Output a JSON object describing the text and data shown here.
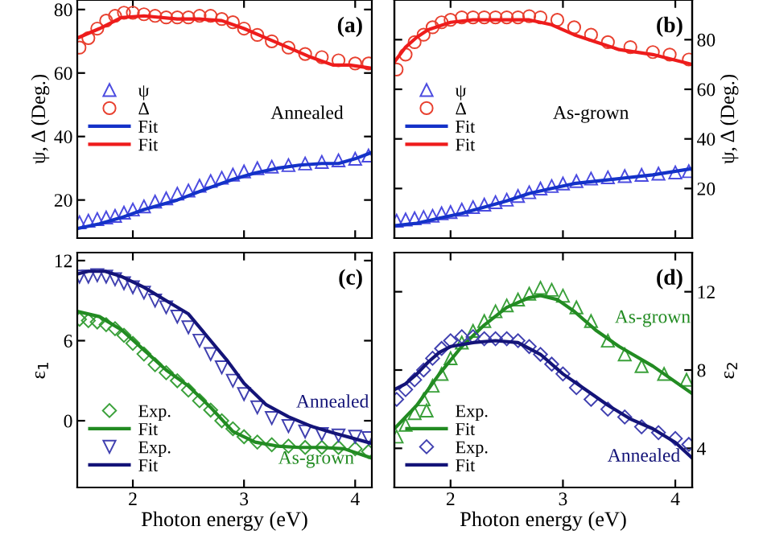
{
  "chart_data": [
    {
      "type": "scatter",
      "tick_labels": "y",
      "ylabel": "ψ, Δ (Deg.)",
      "xlim": [
        1.5,
        4.15
      ],
      "xticks": [
        2,
        3,
        4
      ],
      "ylim": [
        8,
        83
      ],
      "yticks": [
        20,
        40,
        60,
        80
      ],
      "legend": "left",
      "annotations": [
        "(a)",
        "Annealed"
      ],
      "series": [
        {
          "name": "ψ",
          "marker": "triangle",
          "color": "#4b4be0",
          "x": [
            1.52,
            1.6,
            1.68,
            1.76,
            1.84,
            1.92,
            2.0,
            2.1,
            2.2,
            2.3,
            2.4,
            2.5,
            2.6,
            2.7,
            2.8,
            2.9,
            3.0,
            3.12,
            3.25,
            3.4,
            3.55,
            3.7,
            3.85,
            4.0,
            4.12
          ],
          "values": [
            13,
            13.5,
            14,
            14.5,
            15,
            16,
            17,
            18,
            19.5,
            20.5,
            22,
            23,
            24.5,
            26,
            27,
            28,
            29,
            30,
            30.5,
            31,
            31.5,
            32,
            32.5,
            33,
            34
          ]
        },
        {
          "name": "Δ",
          "marker": "circle",
          "color": "#e8402f",
          "x": [
            1.52,
            1.6,
            1.68,
            1.76,
            1.84,
            1.92,
            2.0,
            2.1,
            2.2,
            2.3,
            2.4,
            2.5,
            2.6,
            2.7,
            2.8,
            2.9,
            3.0,
            3.12,
            3.25,
            3.4,
            3.55,
            3.7,
            3.85,
            4.0,
            4.12
          ],
          "values": [
            68,
            71,
            74,
            76.5,
            78,
            79,
            79,
            78.5,
            78,
            77.5,
            77.5,
            77.5,
            78,
            78,
            77,
            76,
            74,
            72,
            70,
            68,
            66,
            65,
            64,
            63,
            63
          ]
        },
        {
          "name": "Fit",
          "type": "line",
          "color": "#1432c8",
          "x": [
            1.5,
            1.7,
            1.9,
            2.1,
            2.4,
            2.7,
            2.9,
            3.1,
            3.3,
            3.5,
            3.7,
            3.85,
            4.0,
            4.15
          ],
          "values": [
            11,
            12.5,
            14.5,
            17,
            20,
            24,
            26.5,
            28.5,
            30,
            31,
            31.5,
            31.5,
            33,
            35
          ]
        },
        {
          "name": "Fit",
          "type": "line",
          "color": "#ee1c1c",
          "x": [
            1.5,
            1.7,
            1.9,
            2.1,
            2.4,
            2.6,
            2.8,
            3.0,
            3.2,
            3.4,
            3.6,
            3.8,
            3.95,
            4.15
          ],
          "values": [
            71,
            74,
            77.5,
            78,
            77,
            77,
            76.5,
            74,
            71,
            68,
            65,
            62.5,
            62.5,
            61.5
          ]
        }
      ]
    },
    {
      "type": "scatter",
      "tick_labels": "y",
      "y2label": "ψ, Δ (Deg.)",
      "xlim": [
        1.5,
        4.15
      ],
      "xticks": [
        2,
        3,
        4
      ],
      "y2lim": [
        0,
        96
      ],
      "y2ticks": [
        20,
        40,
        60,
        80
      ],
      "legend": "left",
      "annotations": [
        "(b)",
        "As-grown"
      ],
      "series": [
        {
          "name": "ψ",
          "axis": "y2",
          "marker": "triangle",
          "color": "#4b4be0",
          "x": [
            1.52,
            1.6,
            1.68,
            1.76,
            1.84,
            1.92,
            2.0,
            2.1,
            2.2,
            2.3,
            2.4,
            2.5,
            2.6,
            2.7,
            2.8,
            2.9,
            3.0,
            3.12,
            3.25,
            3.4,
            3.55,
            3.7,
            3.85,
            4.0,
            4.12
          ],
          "values": [
            7,
            7.5,
            8,
            8.5,
            9,
            10,
            10.5,
            11.5,
            12.5,
            13.5,
            14.5,
            15.5,
            17,
            18.5,
            20,
            21,
            22,
            23,
            24,
            24.5,
            25,
            25.5,
            26,
            26.5,
            27
          ]
        },
        {
          "name": "Δ",
          "axis": "y2",
          "marker": "circle",
          "color": "#e8402f",
          "x": [
            1.52,
            1.6,
            1.68,
            1.76,
            1.84,
            1.92,
            2.0,
            2.1,
            2.2,
            2.3,
            2.4,
            2.5,
            2.6,
            2.7,
            2.8,
            2.95,
            3.1,
            3.25,
            3.4,
            3.6,
            3.8,
            3.95,
            4.12
          ],
          "values": [
            68,
            74,
            79,
            82,
            85,
            87,
            88,
            89,
            89,
            89,
            89,
            89,
            89,
            89.5,
            89,
            88,
            85,
            82,
            79,
            77,
            75,
            74,
            72
          ]
        },
        {
          "name": "Fit",
          "type": "line",
          "axis": "y2",
          "color": "#1432c8",
          "x": [
            1.5,
            1.7,
            1.9,
            2.1,
            2.3,
            2.5,
            2.7,
            2.9,
            3.1,
            3.3,
            3.5,
            3.8,
            4.15
          ],
          "values": [
            5,
            6,
            8,
            10,
            12.5,
            15,
            18,
            20,
            22,
            23,
            24,
            25.5,
            28
          ]
        },
        {
          "name": "Fit",
          "type": "line",
          "axis": "y2",
          "color": "#ee1c1c",
          "x": [
            1.5,
            1.6,
            1.7,
            1.8,
            2.0,
            2.2,
            2.5,
            2.7,
            2.9,
            3.1,
            3.3,
            3.5,
            3.8,
            4.15
          ],
          "values": [
            71,
            77,
            81,
            84,
            87,
            88,
            88,
            88,
            86,
            82,
            79,
            76,
            74,
            70
          ]
        }
      ]
    },
    {
      "type": "scatter",
      "ylabel": "ε$_{1}$",
      "xlabel": "Photon energy (eV)",
      "xlim": [
        1.5,
        4.15
      ],
      "xticks": [
        2,
        3,
        4
      ],
      "ylim": [
        -5,
        12.6
      ],
      "yticks": [
        0,
        6,
        12
      ],
      "legend": "bottom left",
      "annotations": [
        "(c)",
        "Annealed",
        "As-grown"
      ],
      "series": [
        {
          "name": "Exp.",
          "marker": "diamond",
          "color": "#3aa03a",
          "x": [
            1.52,
            1.6,
            1.68,
            1.76,
            1.84,
            1.92,
            2.0,
            2.1,
            2.2,
            2.3,
            2.4,
            2.5,
            2.6,
            2.7,
            2.8,
            2.9,
            3.0,
            3.12,
            3.25,
            3.4,
            3.55,
            3.7,
            3.85,
            4.0,
            4.12
          ],
          "values": [
            7.6,
            7.5,
            7.4,
            7.2,
            6.9,
            6.4,
            5.8,
            5,
            4.2,
            3.6,
            3,
            2.3,
            1.5,
            0.8,
            0,
            -0.6,
            -1.2,
            -1.6,
            -1.8,
            -1.9,
            -2,
            -2,
            -2,
            -2.1,
            -2.3
          ]
        },
        {
          "name": "Fit",
          "type": "line",
          "color": "#228b22",
          "x": [
            1.5,
            1.7,
            1.9,
            2.1,
            2.3,
            2.5,
            2.7,
            2.9,
            3.1,
            3.3,
            3.5,
            3.7,
            3.9,
            4.15
          ],
          "values": [
            8.2,
            7.8,
            6.8,
            5.3,
            3.8,
            2.6,
            1.0,
            -0.8,
            -1.6,
            -1.9,
            -2,
            -2,
            -2.1,
            -2.8
          ]
        },
        {
          "name": "Exp.",
          "marker": "triangle_down",
          "color": "#4040b0",
          "x": [
            1.52,
            1.6,
            1.68,
            1.76,
            1.84,
            1.92,
            2.0,
            2.1,
            2.2,
            2.3,
            2.4,
            2.5,
            2.6,
            2.7,
            2.8,
            2.9,
            3.0,
            3.12,
            3.25,
            3.4,
            3.55,
            3.7,
            3.85,
            4.0,
            4.12
          ],
          "values": [
            10.8,
            10.8,
            10.9,
            10.8,
            10.6,
            10.3,
            10,
            9.6,
            9,
            8.5,
            7.8,
            7,
            6,
            5,
            4,
            3,
            2,
            1,
            0.2,
            -0.4,
            -0.8,
            -1,
            -1.1,
            -1.2,
            -1.3
          ]
        },
        {
          "name": "Fit",
          "type": "line",
          "color": "#141478",
          "x": [
            1.5,
            1.6,
            1.75,
            1.9,
            2.1,
            2.3,
            2.5,
            2.7,
            2.85,
            3.0,
            3.2,
            3.4,
            3.6,
            3.8,
            4.15
          ],
          "values": [
            11,
            11.2,
            11.2,
            10.8,
            10,
            9,
            8,
            6,
            4.5,
            2.8,
            1.2,
            0.3,
            -0.4,
            -0.9,
            -1.7
          ]
        }
      ]
    },
    {
      "type": "scatter",
      "y2label": "ε$_{2}$",
      "xlabel": "Photon energy (eV)",
      "xlim": [
        1.5,
        4.15
      ],
      "xticks": [
        2,
        3,
        4
      ],
      "y2lim": [
        2,
        14
      ],
      "y2ticks": [
        4,
        8,
        12
      ],
      "legend": "bottom left",
      "annotations": [
        "(d)",
        "As-grown",
        "Annealed"
      ],
      "series": [
        {
          "name": "Exp.",
          "axis": "y2",
          "marker": "triangle",
          "color": "#3aa03a",
          "x": [
            1.52,
            1.6,
            1.68,
            1.76,
            1.84,
            1.92,
            2.0,
            2.1,
            2.2,
            2.3,
            2.4,
            2.5,
            2.6,
            2.7,
            2.8,
            2.9,
            3.0,
            3.12,
            3.25,
            3.4,
            3.55,
            3.7,
            3.9,
            4.1
          ],
          "values": [
            4.6,
            5.2,
            5.8,
            6.5,
            7.2,
            7.8,
            8.6,
            9.4,
            10,
            10.5,
            11,
            11.3,
            11.6,
            11.9,
            12.2,
            12.1,
            11.8,
            11.2,
            10.5,
            9.5,
            8.8,
            8.2,
            7.8,
            7.5
          ]
        },
        {
          "name": "Fit",
          "type": "line",
          "axis": "y2",
          "color": "#228b22",
          "x": [
            1.5,
            1.7,
            1.9,
            2.1,
            2.3,
            2.5,
            2.7,
            2.8,
            2.95,
            3.1,
            3.3,
            3.5,
            3.8,
            4.15
          ],
          "values": [
            5,
            6.2,
            7.8,
            9.2,
            10.3,
            11.2,
            11.7,
            11.8,
            11.6,
            11,
            10,
            9.2,
            8.2,
            6.8
          ]
        },
        {
          "name": "Exp.",
          "axis": "y2",
          "marker": "diamond",
          "color": "#4040b0",
          "x": [
            1.52,
            1.6,
            1.68,
            1.76,
            1.84,
            1.92,
            2.0,
            2.1,
            2.2,
            2.3,
            2.4,
            2.5,
            2.6,
            2.7,
            2.8,
            2.9,
            3.0,
            3.12,
            3.25,
            3.4,
            3.55,
            3.7,
            3.85,
            4.0,
            4.12
          ],
          "values": [
            6.5,
            7,
            7.5,
            8,
            8.6,
            9.1,
            9.5,
            9.7,
            9.7,
            9.6,
            9.6,
            9.6,
            9.5,
            9.2,
            8.8,
            8.3,
            7.8,
            7.1,
            6.5,
            6,
            5.6,
            5.1,
            4.8,
            4.5,
            4.2
          ]
        },
        {
          "name": "Fit",
          "type": "line",
          "axis": "y2",
          "color": "#141478",
          "x": [
            1.5,
            1.6,
            1.7,
            1.8,
            1.9,
            2.0,
            2.2,
            2.4,
            2.6,
            2.8,
            3.0,
            3.2,
            3.4,
            3.6,
            3.8,
            4.0,
            4.15
          ],
          "values": [
            7,
            7.3,
            7.8,
            8.4,
            8.9,
            9.2,
            9.4,
            9.5,
            9.4,
            8.8,
            7.8,
            7,
            6.2,
            5.5,
            5,
            4.3,
            3.5
          ]
        }
      ]
    }
  ]
}
